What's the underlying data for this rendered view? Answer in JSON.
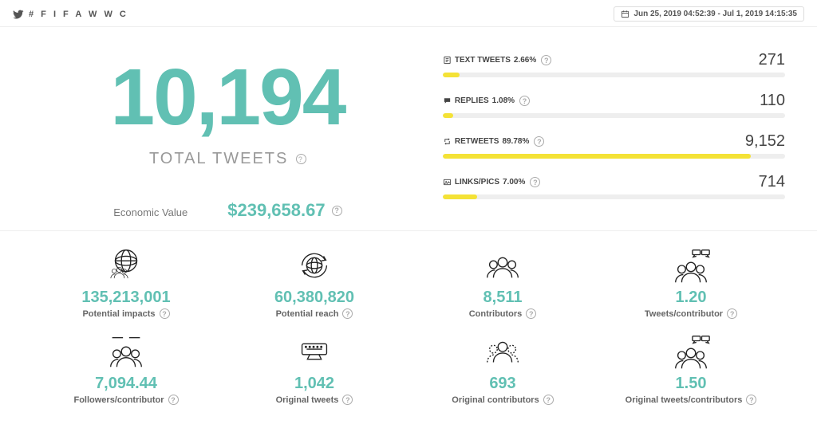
{
  "header": {
    "hashtag": "# F I F A W W C",
    "date_range": "Jun 25, 2019 04:52:39 - Jul 1, 2019 14:15:35"
  },
  "hero": {
    "total_tweets_value": "10,194",
    "total_tweets_label": "TOTAL TWEETS",
    "economic_value_label": "Economic Value",
    "economic_value": "$239,658.67"
  },
  "breakdown": {
    "bar_bg": "#eeeeee",
    "bar_fill": "#f4e236",
    "items": [
      {
        "icon": "text",
        "label": "TEXT TWEETS",
        "pct": "2.66%",
        "count": "271",
        "width": 5
      },
      {
        "icon": "reply",
        "label": "REPLIES",
        "pct": "1.08%",
        "count": "110",
        "width": 3
      },
      {
        "icon": "retweet",
        "label": "RETWEETS",
        "pct": "89.78%",
        "count": "9,152",
        "width": 90
      },
      {
        "icon": "image",
        "label": "LINKS/PICS",
        "pct": "7.00%",
        "count": "714",
        "width": 10
      }
    ]
  },
  "metrics": [
    {
      "icon": "globe-users",
      "value": "135,213,001",
      "label": "Potential impacts"
    },
    {
      "icon": "globe-arrows",
      "value": "60,380,820",
      "label": "Potential reach"
    },
    {
      "icon": "users",
      "value": "8,511",
      "label": "Contributors"
    },
    {
      "icon": "users-speech",
      "value": "1.20",
      "label": "Tweets/contributor"
    },
    {
      "icon": "users-lines",
      "value": "7,094.44",
      "label": "Followers/contributor"
    },
    {
      "icon": "keyboard",
      "value": "1,042",
      "label": "Original tweets"
    },
    {
      "icon": "users-dotted",
      "value": "693",
      "label": "Original contributors"
    },
    {
      "icon": "users-speech",
      "value": "1.50",
      "label": "Original tweets/contributors"
    }
  ],
  "colors": {
    "accent": "#61c0b3",
    "text_muted": "#999999",
    "text_dark": "#333333",
    "border": "#eeeeee"
  }
}
